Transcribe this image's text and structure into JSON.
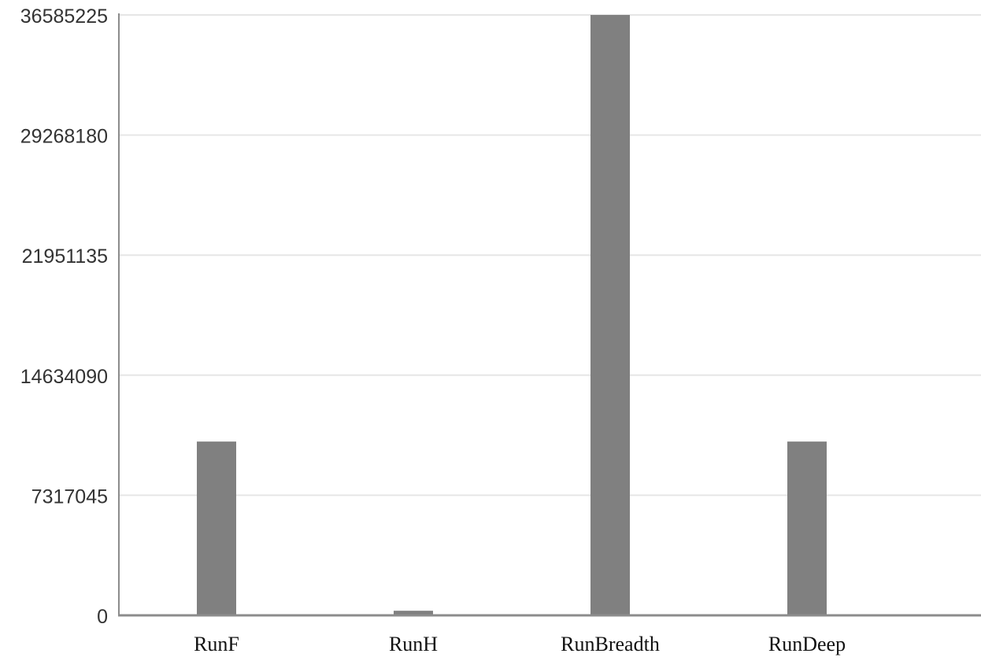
{
  "chart_data": {
    "type": "bar",
    "categories": [
      "RunF",
      "RunH",
      "RunBreadth",
      "RunDeep"
    ],
    "values": [
      10590000,
      280000,
      36585225,
      10590000
    ],
    "ylim": [
      0,
      36585225
    ],
    "yticks": [
      "0",
      "7317045",
      "14634090",
      "21951135",
      "29268180",
      "36585225"
    ],
    "grid": true,
    "colors": {
      "bar": "#808080",
      "grid": "#e6e6e6",
      "axis": "#8c8c8c"
    }
  }
}
